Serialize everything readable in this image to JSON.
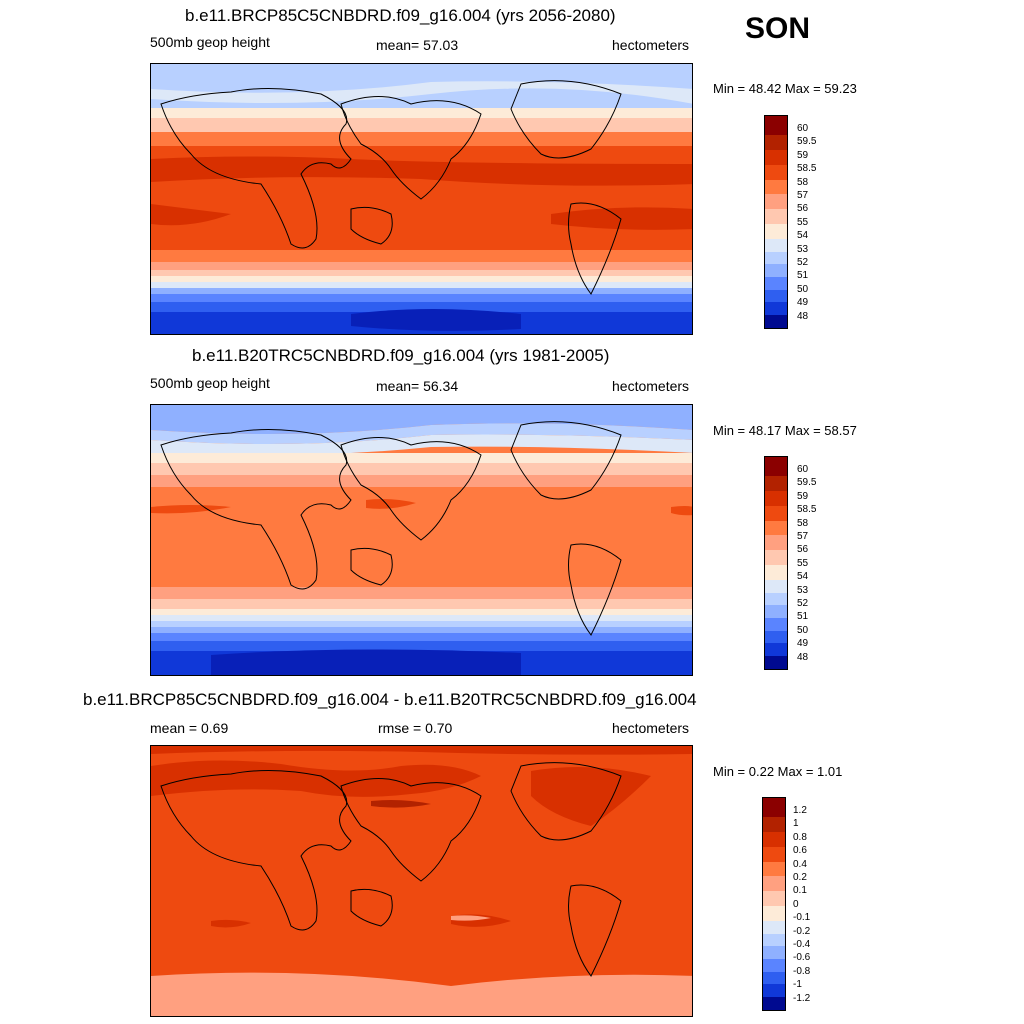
{
  "season": "SON",
  "panels": [
    {
      "title": "b.e11.BRCP85C5CNBDRD.f09_g16.004 (yrs 2056-2080)",
      "left_label": "500mb geop height",
      "center_label": "mean=  57.03",
      "right_label": "hectometers",
      "minmax": "Min =  48.42 Max =  59.23",
      "colorbar_labels": [
        "60",
        "59.5",
        "59",
        "58.5",
        "58",
        "57",
        "56",
        "55",
        "54",
        "53",
        "52",
        "51",
        "50",
        "49",
        "48"
      ]
    },
    {
      "title": "b.e11.B20TRC5CNBDRD.f09_g16.004 (yrs 1981-2005)",
      "left_label": "500mb geop height",
      "center_label": "mean=  56.34",
      "right_label": "hectometers",
      "minmax": "Min =  48.17 Max =  58.57",
      "colorbar_labels": [
        "60",
        "59.5",
        "59",
        "58.5",
        "58",
        "57",
        "56",
        "55",
        "54",
        "53",
        "52",
        "51",
        "50",
        "49",
        "48"
      ]
    },
    {
      "title": "b.e11.BRCP85C5CNBDRD.f09_g16.004 - b.e11.B20TRC5CNBDRD.f09_g16.004",
      "left_label": "mean =   0.69",
      "center_label": "rmse =   0.70",
      "right_label": "hectometers",
      "minmax": "Min =   0.22 Max =   1.01",
      "colorbar_labels": [
        "1.2",
        "1",
        "0.8",
        "0.6",
        "0.4",
        "0.2",
        "0.1",
        "0",
        "-0.1",
        "-0.2",
        "-0.4",
        "-0.6",
        "-0.8",
        "-1",
        "-1.2"
      ]
    }
  ],
  "colors": {
    "palette": [
      "#8b0000",
      "#b22200",
      "#d83000",
      "#ee4a10",
      "#ff7a40",
      "#ffa080",
      "#ffc8b0",
      "#fdebd8",
      "#dde8f8",
      "#b8d0ff",
      "#8fb0ff",
      "#5a84ff",
      "#2f5ff0",
      "#1038d8",
      "#0820b8",
      "#000a90"
    ]
  }
}
